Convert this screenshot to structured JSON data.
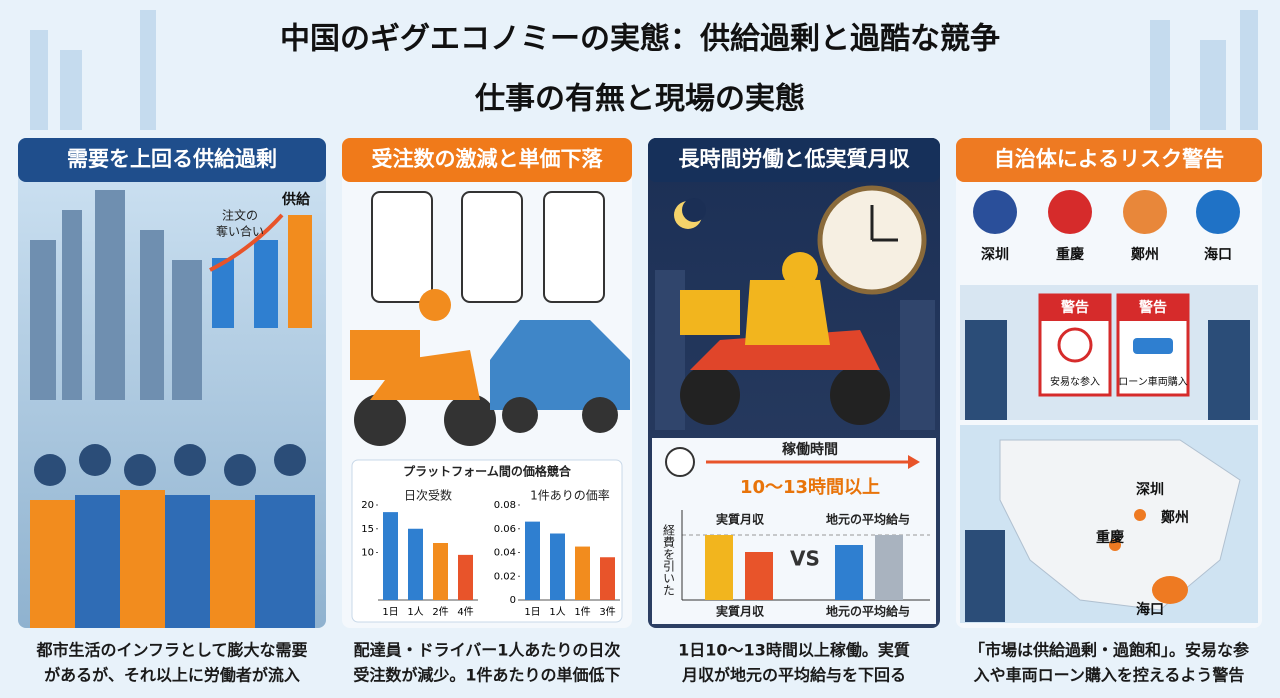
{
  "header": {
    "title": "中国のギグエコノミーの実態：供給過剰と過酷な競争",
    "subtitle": "仕事の有無と現場の実態"
  },
  "panels": [
    {
      "heading": "需要を上回る供給過剰",
      "labels": [
        "注文の",
        "奪い合い",
        "供給"
      ],
      "caption": [
        "都市生活のインフラとして膨大な需要",
        "があるが、それ以上に労働者が流入"
      ]
    },
    {
      "heading": "受注数の激減と単価下落",
      "platform_label": "プラットフォーム間の価格競合",
      "charts": [
        {
          "type": "bar",
          "title": "日次受数",
          "categories": [
            "1日",
            "1人",
            "2件",
            "4件"
          ],
          "values": [
            18.5,
            15,
            12,
            9.5
          ],
          "colors": [
            "#2f7fd0",
            "#2f7fd0",
            "#f28c1e",
            "#e8542a"
          ],
          "ylim": [
            0,
            20
          ],
          "yticks": [
            10,
            15,
            20
          ]
        },
        {
          "type": "bar",
          "title": "1件ありの価率",
          "categories": [
            "1日",
            "1人",
            "1件",
            "3件"
          ],
          "values": [
            0.066,
            0.056,
            0.045,
            0.036
          ],
          "colors": [
            "#2f7fd0",
            "#2f7fd0",
            "#f28c1e",
            "#e8542a"
          ],
          "ylim": [
            0,
            0.08
          ],
          "yticks": [
            0,
            0.02,
            0.04,
            0.06,
            0.08
          ]
        }
      ],
      "caption": [
        "配達員・ドライバー1人あたりの日次",
        "受注数が減少。1件あたりの単価低下"
      ]
    },
    {
      "heading": "長時間労働と低実質月収",
      "hours_label": "稼働時間",
      "hours": "10〜13時間以上",
      "side_label": "経費を引いた",
      "compare": [
        "実質月収",
        "VS",
        "地元の平均給与"
      ],
      "bottom": [
        "実質月収",
        "地元の平均給与"
      ],
      "caption": [
        "1日10〜13時間以上稼働。実質",
        "月収が地元の平均給与を下回る"
      ]
    },
    {
      "heading": "自治体によるリスク警告",
      "cities": [
        "深圳",
        "重慶",
        "鄭州",
        "海口"
      ],
      "signs": [
        [
          "警告",
          "安易な参入"
        ],
        [
          "警告",
          "ローン車両購入"
        ]
      ],
      "map_labels": [
        "深圳",
        "鄭州",
        "重慶",
        "海口"
      ],
      "caption": [
        "「市場は供給過剰・過飽和」。安易な参",
        "入や車両ローン購入を控えるよう警告"
      ]
    }
  ]
}
